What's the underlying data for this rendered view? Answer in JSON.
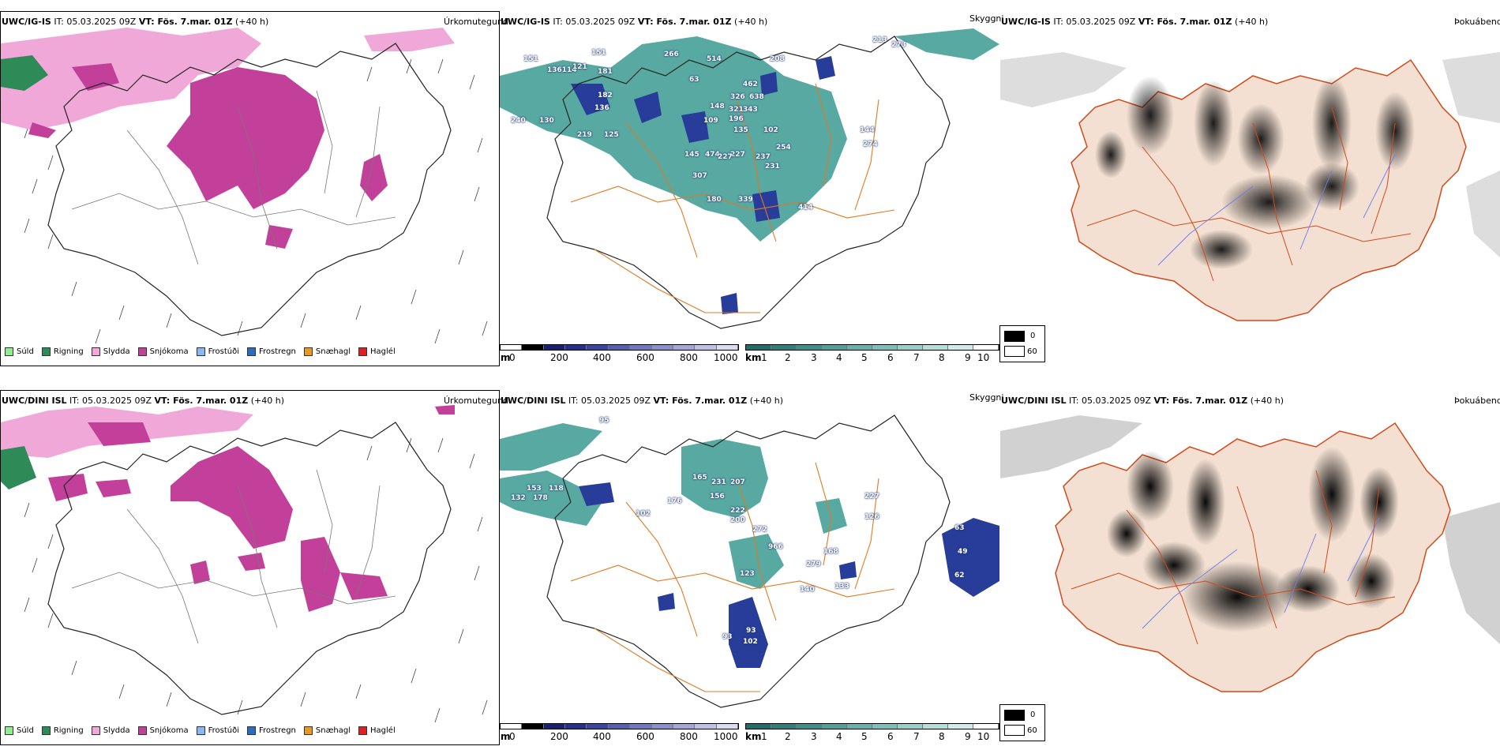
{
  "rows": [
    {
      "model_prefix": "UWC/IG-IS",
      "it_text": "IT: 05.03.2025 09Z",
      "vt_bold": "VT: Fös. 7.mar. 01Z",
      "lead_text": "(+40 h)",
      "cloud_labels": [
        "151",
        "136114",
        "121",
        "151",
        "181",
        "182",
        "136",
        "240",
        "130",
        "219",
        "125",
        "145",
        "474",
        "227",
        "237",
        "231",
        "307",
        "339",
        "462",
        "326",
        "638",
        "321",
        "343",
        "196",
        "135",
        "102",
        "254",
        "414",
        "208",
        "266",
        "514",
        "63",
        "148",
        "144",
        "274",
        "227",
        "213",
        "273",
        "109",
        "180"
      ]
    },
    {
      "model_prefix": "UWC/DINI ISL",
      "it_text": "IT: 05.03.2025 09Z",
      "vt_bold": "VT: Fös. 7.mar. 01Z",
      "lead_text": "(+40 h)",
      "cloud_labels": [
        "95",
        "153",
        "118",
        "132",
        "178",
        "102",
        "165",
        "156",
        "231",
        "207",
        "222",
        "200",
        "272",
        "966",
        "123",
        "168",
        "279",
        "133",
        "140",
        "93",
        "93",
        "102",
        "63",
        "49",
        "62",
        "227",
        "126",
        "176"
      ]
    }
  ],
  "titles": {
    "precip": "Úrkomutegund",
    "cloud": "Skyggni",
    "fog": "Þokuábendi"
  },
  "precip_legend": [
    {
      "label": "Súld",
      "color": "#90ee90"
    },
    {
      "label": "Rigning",
      "color": "#2e8b57"
    },
    {
      "label": "Slydda",
      "color": "#f0a8d8"
    },
    {
      "label": "Snjókoma",
      "color": "#c2409a"
    },
    {
      "label": "Frostúði",
      "color": "#87b8f0"
    },
    {
      "label": "Frostregn",
      "color": "#2a6cc0"
    },
    {
      "label": "Snæhagl",
      "color": "#e89a20"
    },
    {
      "label": "Haglél",
      "color": "#e02020"
    }
  ],
  "scales": {
    "height_unit": "m",
    "height_ticks": [
      "0",
      "200",
      "400",
      "600",
      "800",
      "1000"
    ],
    "vis_unit": "km",
    "vis_ticks": [
      "1",
      "2",
      "3",
      "4",
      "5",
      "6",
      "7",
      "8",
      "9",
      "10"
    ]
  },
  "fog_legend": {
    "labels": [
      "0",
      "60"
    ]
  },
  "colors": {
    "snow": "#c2409a",
    "sleet": "#f0a8d8",
    "rain": "#2e8b57",
    "teal": "#2f8f88",
    "cloud_blue": "#283c9a",
    "roads": "#e07a20",
    "land": "#f3e0d2"
  }
}
